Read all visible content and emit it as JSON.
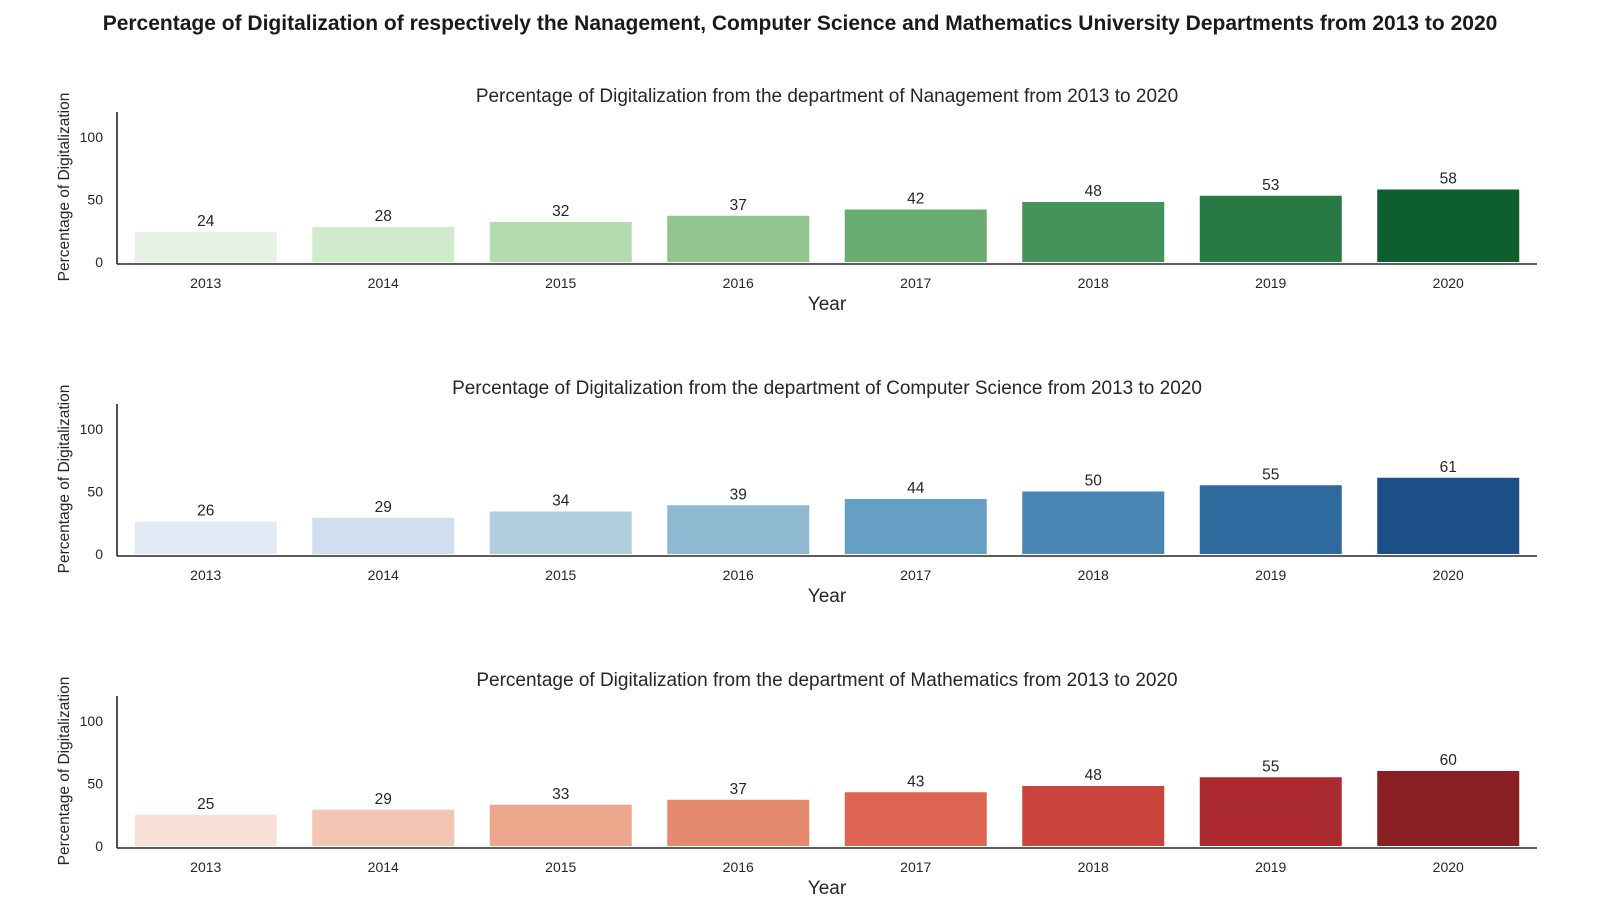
{
  "suptitle": "Percentage of Digitalization of respectively the Nanagement, Computer Science and Mathematics University Departments from 2013 to 2020",
  "chart_data": [
    {
      "type": "bar",
      "title": "Percentage of Digitalization from the department of Nanagement from 2013 to 2020",
      "xlabel": "Year",
      "ylabel": "Percentage of Digitalization",
      "categories": [
        "2013",
        "2014",
        "2015",
        "2016",
        "2017",
        "2018",
        "2019",
        "2020"
      ],
      "values": [
        24,
        28,
        32,
        37,
        42,
        48,
        53,
        58
      ],
      "ylim": [
        0,
        120
      ],
      "yticks": [
        0,
        50,
        100
      ],
      "grid": false,
      "colors": [
        "#e6f3e4",
        "#d1eacd",
        "#b3dbb0",
        "#91c58f",
        "#68ad6f",
        "#43935a",
        "#287a45",
        "#0f5e2e"
      ]
    },
    {
      "type": "bar",
      "title": "Percentage of Digitalization from the department of Computer Science from 2013 to 2020",
      "xlabel": "Year",
      "ylabel": "Percentage of Digitalization",
      "categories": [
        "2013",
        "2014",
        "2015",
        "2016",
        "2017",
        "2018",
        "2019",
        "2020"
      ],
      "values": [
        26,
        29,
        34,
        39,
        44,
        50,
        55,
        61
      ],
      "ylim": [
        0,
        120
      ],
      "yticks": [
        0,
        50,
        100
      ],
      "grid": false,
      "colors": [
        "#e2ebf5",
        "#cfdfee",
        "#b2cfe2",
        "#8fb8d1",
        "#669fc4",
        "#4a85b3",
        "#2f6a9f",
        "#1c4f85"
      ]
    },
    {
      "type": "bar",
      "title": "Percentage of Digitalization from the department of Mathematics from 2013 to 2020",
      "xlabel": "Year",
      "ylabel": "Percentage of Digitalization",
      "categories": [
        "2013",
        "2014",
        "2015",
        "2016",
        "2017",
        "2018",
        "2019",
        "2020"
      ],
      "values": [
        25,
        29,
        33,
        37,
        43,
        48,
        55,
        60
      ],
      "ylim": [
        0,
        120
      ],
      "yticks": [
        0,
        50,
        100
      ],
      "grid": false,
      "colors": [
        "#f8e0d6",
        "#f2c6b2",
        "#eca68c",
        "#e68a6e",
        "#dd6552",
        "#ca443b",
        "#ab2a2f",
        "#8a1f24"
      ]
    }
  ]
}
